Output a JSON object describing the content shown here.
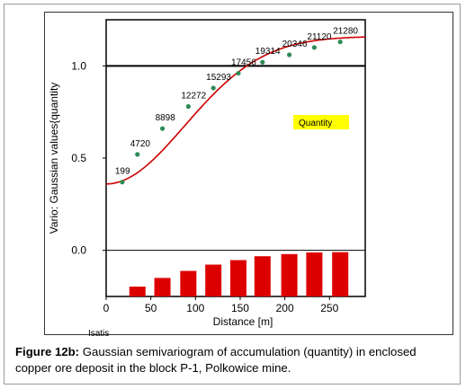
{
  "software": "Isatis",
  "caption": {
    "label": "Figure 12b:",
    "text": " Gaussian semivariogram of accumulation (quantity) in enclosed copper ore deposit in the block P-1, Polkowice mine."
  },
  "chart_data": {
    "type": "scatter",
    "xlabel": "Distance [m]",
    "ylabel": "Vario: Gaussian values{quantity",
    "xlim": [
      0,
      290
    ],
    "ylim": [
      -0.25,
      1.25
    ],
    "x_ticks": [
      0,
      50,
      100,
      150,
      200,
      250
    ],
    "y_ticks": [
      0.0,
      0.5,
      1.0
    ],
    "y_tick_labels": [
      "0.0",
      "0.5",
      "1.0"
    ],
    "sill": 1.0,
    "legend": "Quantity",
    "legend_color": "#ffff00",
    "curve_color": "#cc0000",
    "point_color": "#2e8b57",
    "bar_color": "#dd0000",
    "experimental": {
      "x": [
        18,
        35,
        63,
        92,
        120,
        148,
        175,
        205,
        233,
        262
      ],
      "y": [
        0.37,
        0.52,
        0.66,
        0.78,
        0.88,
        0.96,
        1.02,
        1.06,
        1.1,
        1.13
      ],
      "labels": [
        "199",
        "4720",
        "8898",
        "12272",
        "15293",
        "17456",
        "19314",
        "20346",
        "21120",
        "21280"
      ]
    },
    "model": {
      "type": "gaussian",
      "nugget": 0.36,
      "sill": 1.16,
      "range": 215
    },
    "pair_counts": {
      "x": [
        35,
        63,
        92,
        120,
        148,
        175,
        205,
        233,
        262
      ],
      "values": [
        4720,
        8898,
        12272,
        15293,
        17456,
        19314,
        20346,
        21120,
        21280
      ]
    }
  }
}
